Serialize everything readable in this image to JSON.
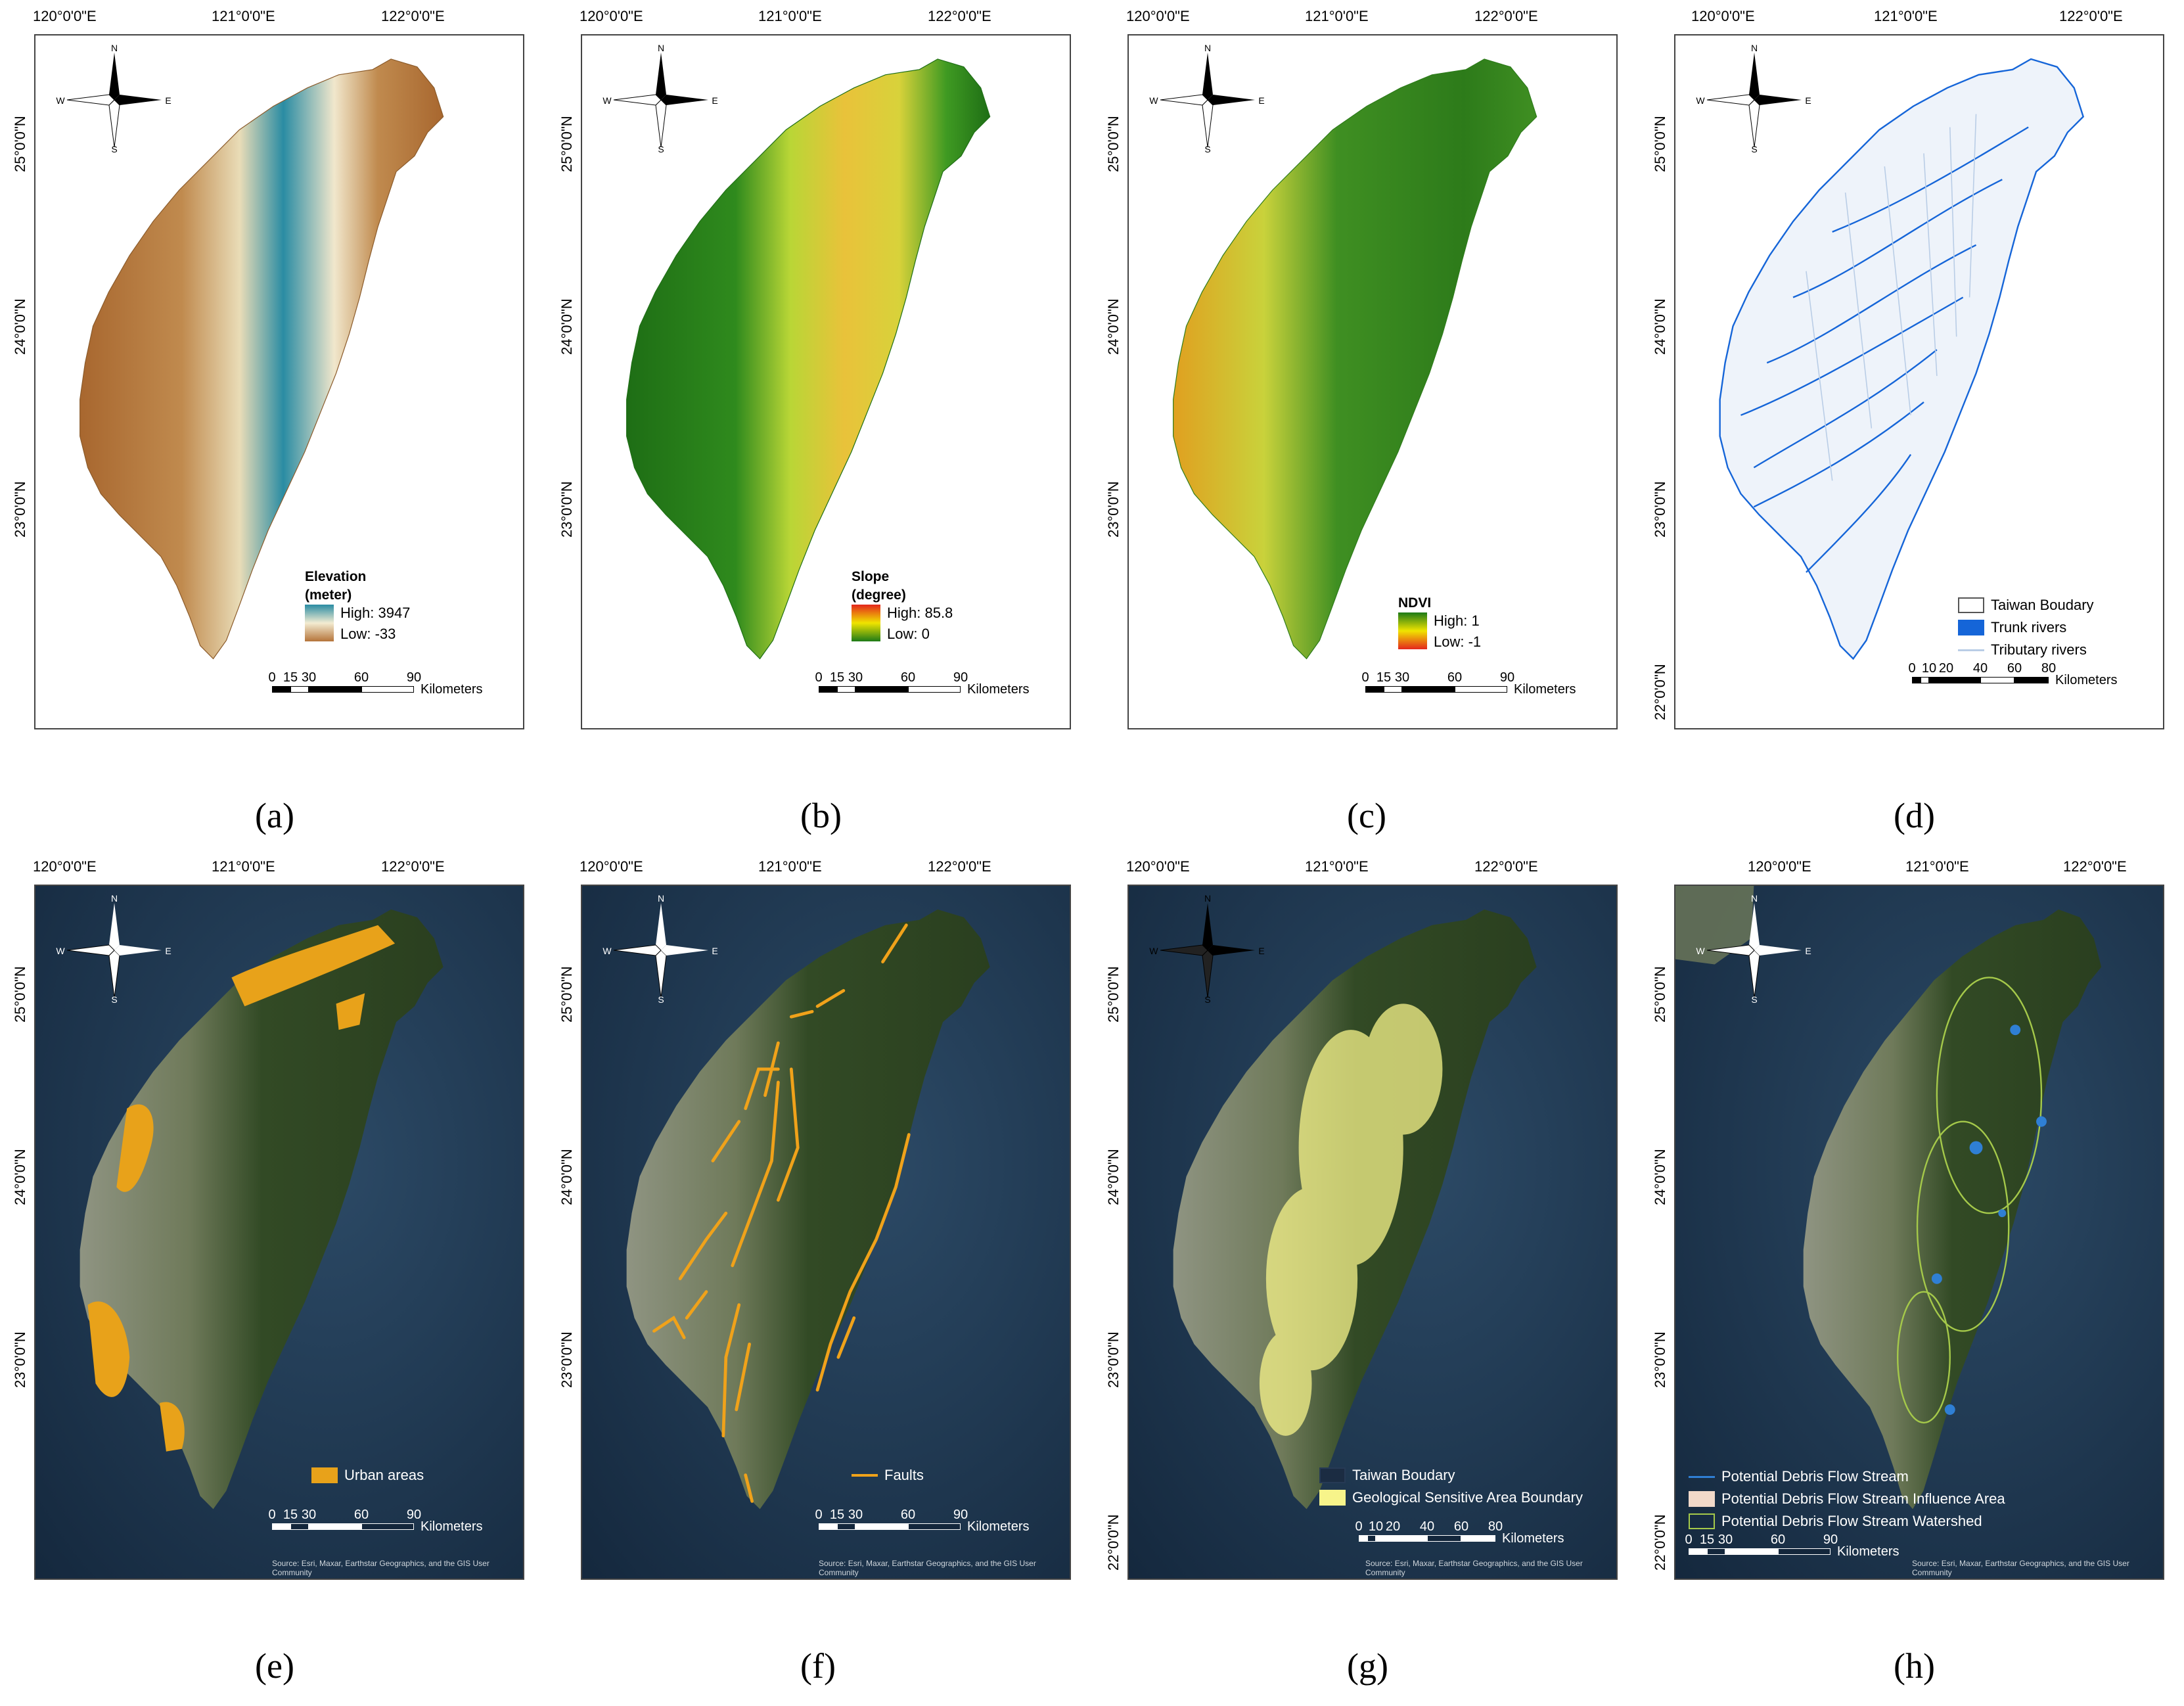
{
  "coords": {
    "lon_120": "120°0'0\"E",
    "lon_121": "121°0'0\"E",
    "lon_122": "122°0'0\"E",
    "lat_25": "25°0'0\"N",
    "lat_24": "24°0'0\"N",
    "lat_23": "23°0'0\"N",
    "lat_22": "22°0'0\"N"
  },
  "compass": {
    "n": "N",
    "s": "S",
    "e": "E",
    "w": "W"
  },
  "scale": {
    "unit": "Kilometers",
    "set1": [
      "0",
      "15",
      "30",
      "60",
      "90"
    ],
    "set2": [
      "0",
      "10",
      "20",
      "40",
      "60",
      "80"
    ]
  },
  "attribution": {
    "line1": "Source: Esri, Maxar, Earthstar Geographics, and the GIS User",
    "line2": "Community"
  },
  "panels": {
    "a": {
      "caption": "(a)",
      "legend": {
        "title_line1": "Elevation",
        "title_line2": "(meter)",
        "high": "High: 3947",
        "low": "Low: -33"
      },
      "colors": {
        "high": "#2a8ca3",
        "mid": "#f3ecd2",
        "low": "#b5743a"
      }
    },
    "b": {
      "caption": "(b)",
      "legend": {
        "title_line1": "Slope",
        "title_line2": "(degree)",
        "high": "High: 85.8",
        "low": "Low: 0"
      },
      "colors": {
        "high": "#e4261c",
        "mid": "#f0e400",
        "low": "#1d7a17"
      }
    },
    "c": {
      "caption": "(c)",
      "legend": {
        "title_line1": "NDVI",
        "high": "High: 1",
        "low": "Low: -1"
      },
      "colors": {
        "high": "#1d7a17",
        "mid": "#f0e400",
        "low": "#e4261c"
      }
    },
    "d": {
      "caption": "(d)",
      "legend": [
        {
          "label": "Taiwan Boudary",
          "color": "#ffffff"
        },
        {
          "label": "Trunk rivers",
          "color": "#1565d8"
        },
        {
          "label": "Tributary rivers",
          "color": "#b9cde6"
        }
      ]
    },
    "e": {
      "caption": "(e)",
      "legend": [
        {
          "label": "Urban areas",
          "color": "#e8a21a"
        }
      ]
    },
    "f": {
      "caption": "(f)",
      "legend": [
        {
          "label": "Faults",
          "color": "#f0a21a"
        }
      ]
    },
    "g": {
      "caption": "(g)",
      "legend": [
        {
          "label": "Taiwan Boudary",
          "color": "#263a55"
        },
        {
          "label": "Geological Sensitive Area Boundary",
          "color": "#f7f48a"
        }
      ]
    },
    "h": {
      "caption": "(h)",
      "legend": [
        {
          "label": "Potential Debris Flow Stream",
          "color": "#2f7fd4"
        },
        {
          "label": "Potential Debris Flow Stream Influence Area",
          "color": "#f1d9c9"
        },
        {
          "label": "Potential Debris Flow Stream Watershed",
          "color": "#a5c94a"
        }
      ]
    }
  }
}
